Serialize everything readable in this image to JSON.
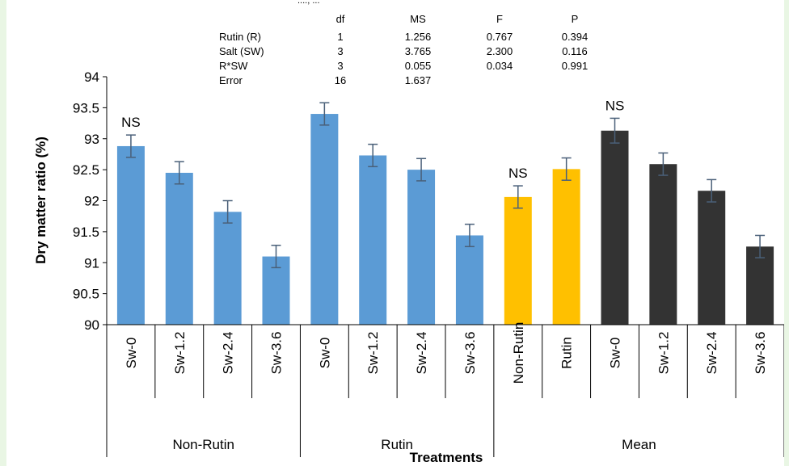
{
  "top_clip_text": "...., ...",
  "anova_table": {
    "headers": [
      "",
      "df",
      "MS",
      "F",
      "P"
    ],
    "rows": [
      [
        "Rutin (R)",
        "1",
        "1.256",
        "0.767",
        "0.394"
      ],
      [
        "Salt (SW)",
        "3",
        "3.765",
        "2.300",
        "0.116"
      ],
      [
        "R*SW",
        "3",
        "0.055",
        "0.034",
        "0.991"
      ],
      [
        "Error",
        "16",
        "1.637",
        "",
        ""
      ]
    ]
  },
  "chart_data": {
    "type": "bar",
    "title": "",
    "xlabel": "Treatments",
    "ylabel": "Dry matter ratio (%)",
    "ylim": [
      90,
      94
    ],
    "yticks": [
      "90",
      "90.5",
      "91",
      "91.5",
      "92",
      "92.5",
      "93",
      "93.5",
      "94"
    ],
    "grid": false,
    "groups": [
      {
        "label": "Non-Rutin",
        "start": 0,
        "end": 4
      },
      {
        "label": "Rutin",
        "start": 4,
        "end": 8
      },
      {
        "label": "Mean",
        "start": 8,
        "end": 14
      }
    ],
    "bars": [
      {
        "category": "Sw-0",
        "value": 92.88,
        "error": 0.18,
        "color": "#5b9bd5",
        "label": "NS"
      },
      {
        "category": "Sw-1.2",
        "value": 92.45,
        "error": 0.18,
        "color": "#5b9bd5",
        "label": ""
      },
      {
        "category": "Sw-2.4",
        "value": 91.82,
        "error": 0.18,
        "color": "#5b9bd5",
        "label": ""
      },
      {
        "category": "Sw-3.6",
        "value": 91.1,
        "error": 0.18,
        "color": "#5b9bd5",
        "label": ""
      },
      {
        "category": "Sw-0",
        "value": 93.4,
        "error": 0.18,
        "color": "#5b9bd5",
        "label": ""
      },
      {
        "category": "Sw-1.2",
        "value": 92.73,
        "error": 0.18,
        "color": "#5b9bd5",
        "label": ""
      },
      {
        "category": "Sw-2.4",
        "value": 92.5,
        "error": 0.18,
        "color": "#5b9bd5",
        "label": ""
      },
      {
        "category": "Sw-3.6",
        "value": 91.44,
        "error": 0.18,
        "color": "#5b9bd5",
        "label": ""
      },
      {
        "category": "Non-Rutin",
        "value": 92.06,
        "error": 0.18,
        "color": "#ffc000",
        "label": "NS"
      },
      {
        "category": "Rutin",
        "value": 92.51,
        "error": 0.18,
        "color": "#ffc000",
        "label": ""
      },
      {
        "category": "Sw-0",
        "value": 93.13,
        "error": 0.2,
        "color": "#333333",
        "label": "NS"
      },
      {
        "category": "Sw-1.2",
        "value": 92.59,
        "error": 0.18,
        "color": "#333333",
        "label": ""
      },
      {
        "category": "Sw-2.4",
        "value": 92.16,
        "error": 0.18,
        "color": "#333333",
        "label": ""
      },
      {
        "category": "Sw-3.6",
        "value": 91.26,
        "error": 0.18,
        "color": "#333333",
        "label": ""
      }
    ],
    "colors": {
      "non_rutin_rutin": "#5b9bd5",
      "rutin_mean": "#ffc000",
      "salt_mean": "#333333",
      "error_bar": "#4a6079"
    }
  }
}
